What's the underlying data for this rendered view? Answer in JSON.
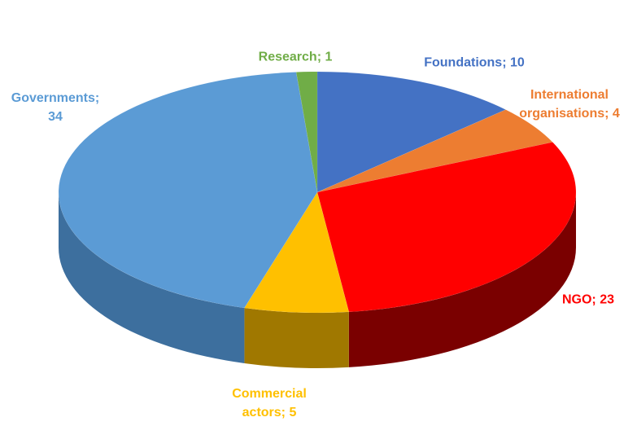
{
  "chart_data": {
    "type": "pie3d",
    "categories": [
      "Foundations",
      "International organisations",
      "NGO",
      "Commercial actors",
      "Governments",
      "Research"
    ],
    "values": [
      10,
      4,
      23,
      5,
      34,
      1
    ],
    "value_labels": [
      "Foundations; 10",
      "International organisations; 4",
      "NGO; 23",
      "Commercial actors; 5",
      "Governments; 34",
      "Research; 1"
    ],
    "colors": [
      "#4472c4",
      "#ed7d31",
      "#ff0000",
      "#ffc000",
      "#5b9bd5",
      "#70ad47"
    ],
    "side_colors": [
      "#2f5597",
      "#a8561f",
      "#7a0000",
      "#a07800",
      "#3d6f9e",
      "#4b7a2f"
    ]
  }
}
